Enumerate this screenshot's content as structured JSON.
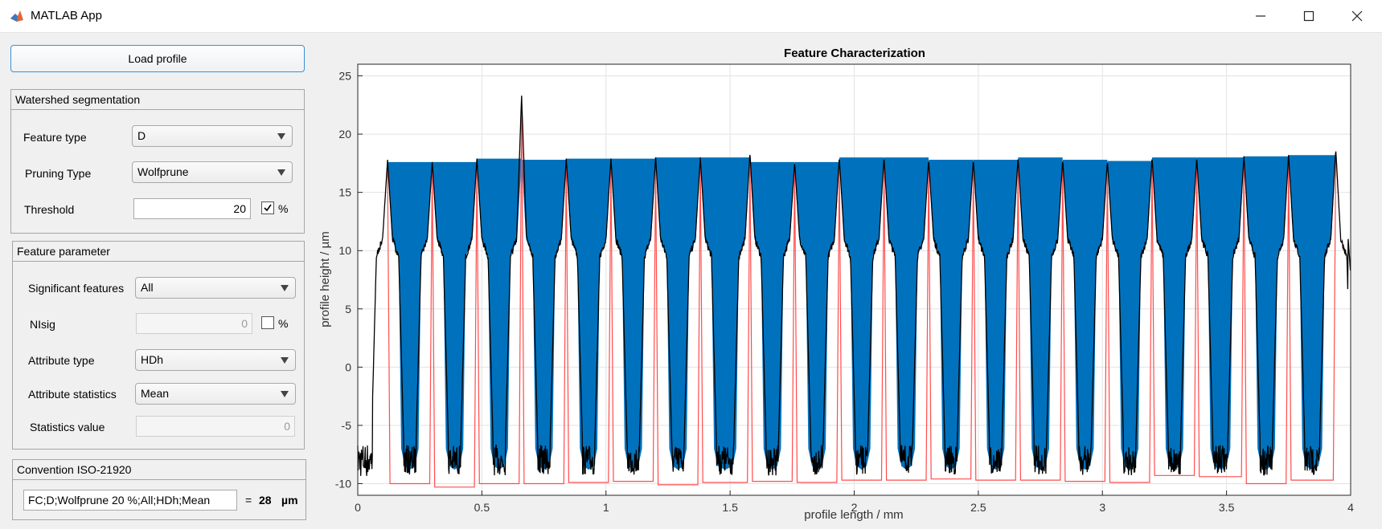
{
  "window": {
    "title": "MATLAB App",
    "minimize_icon": "minimize-icon",
    "maximize_icon": "maximize-icon",
    "close_icon": "close-icon"
  },
  "load_button": "Load profile",
  "watershed": {
    "title": "Watershed segmentation",
    "feature_type_label": "Feature type",
    "feature_type_value": "D",
    "pruning_type_label": "Pruning Type",
    "pruning_type_value": "Wolfprune",
    "threshold_label": "Threshold",
    "threshold_value": "20",
    "threshold_percent_checked": true,
    "threshold_percent_label": "%"
  },
  "feature_parameter": {
    "title": "Feature parameter",
    "significant_label": "Significant features",
    "significant_value": "All",
    "nisig_label": "NIsig",
    "nisig_value": "0",
    "nisig_percent_checked": false,
    "nisig_percent_label": "%",
    "attribute_type_label": "Attribute type",
    "attribute_type_value": "HDh",
    "attribute_stats_label": "Attribute statistics",
    "attribute_stats_value": "Mean",
    "stats_value_label": "Statistics value",
    "stats_value": "0"
  },
  "convention": {
    "title": "Convention ISO-21920",
    "string": "FC;D;Wolfprune 20 %;All;HDh;Mean",
    "equals": "=",
    "result": "28",
    "unit": "µm"
  },
  "chart_data": {
    "type": "line",
    "title": "Feature Characterization",
    "xlabel": "profile length / mm",
    "ylabel": "profile height / µm",
    "xlim": [
      0,
      4
    ],
    "ylim": [
      -11,
      26
    ],
    "x_ticks": [
      "0",
      "0.5",
      "1",
      "1.5",
      "2",
      "2.5",
      "3",
      "3.5",
      "4"
    ],
    "y_ticks": [
      "-10",
      "-5",
      "0",
      "5",
      "10",
      "15",
      "20",
      "25"
    ],
    "grid": true,
    "colors": {
      "fill": "#0072bd",
      "profile": "#000000",
      "outline": "#ff4c4c"
    },
    "peak_positions": [
      0.12,
      0.3,
      0.48,
      0.66,
      0.84,
      1.02,
      1.2,
      1.38,
      1.58,
      1.76,
      1.94,
      2.12,
      2.3,
      2.48,
      2.66,
      2.84,
      3.02,
      3.2,
      3.38,
      3.57,
      3.75,
      3.94
    ],
    "peak_heights": [
      17.8,
      17.6,
      17.9,
      23.3,
      17.9,
      17.9,
      18.0,
      18.0,
      18.4,
      17.6,
      18.0,
      18.0,
      17.8,
      17.8,
      18.0,
      17.8,
      17.7,
      18.0,
      18.0,
      18.1,
      18.2,
      18.7
    ],
    "valley_levels": [
      -10.0,
      -10.3,
      -10.0,
      -10.0,
      -9.9,
      -9.8,
      -10.1,
      -9.9,
      -9.8,
      -9.9,
      -9.7,
      -9.7,
      -9.6,
      -9.7,
      -9.7,
      -9.8,
      -9.9,
      -9.3,
      -9.4,
      -10.0,
      -9.7
    ],
    "fill_tops": [
      17.6,
      17.6,
      17.9,
      17.8,
      17.9,
      17.9,
      18.0,
      18.0,
      17.6,
      17.6,
      18.0,
      18.0,
      17.8,
      17.8,
      18.0,
      17.8,
      17.7,
      18.0,
      18.0,
      18.1,
      18.2
    ],
    "shoulder_height": 11,
    "roughness_min": -8.5
  }
}
